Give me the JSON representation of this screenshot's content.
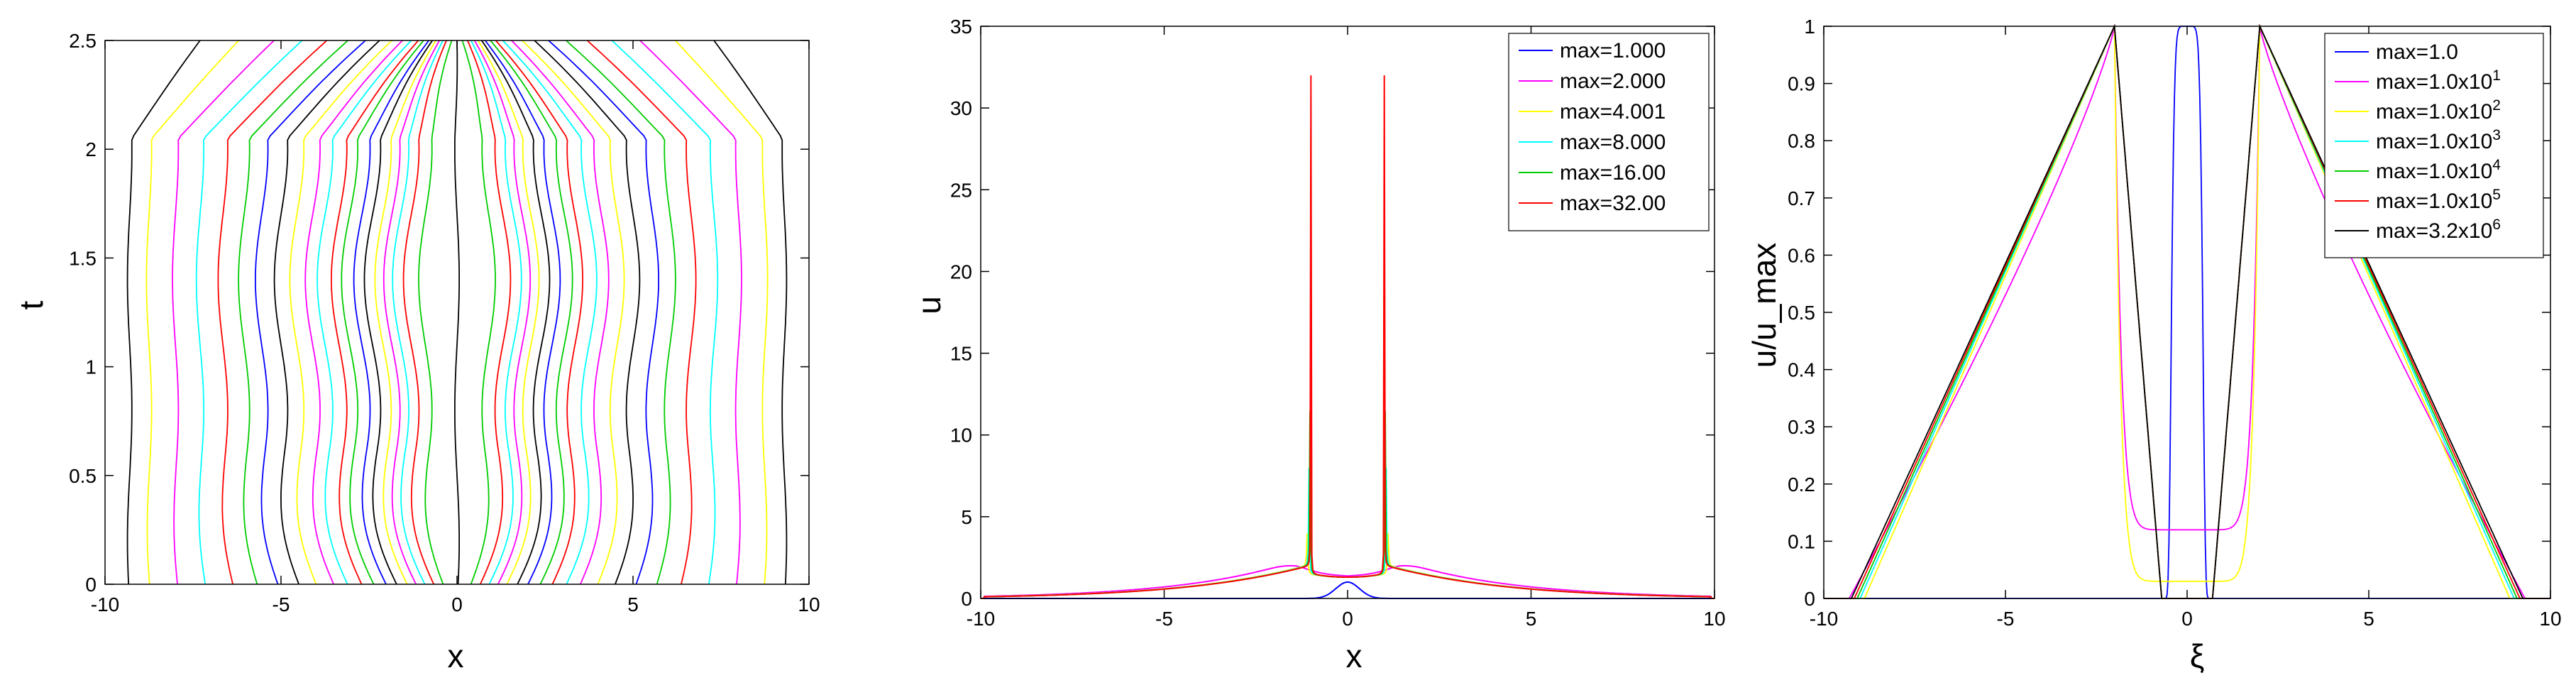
{
  "charts": [
    {
      "xlabel": "x",
      "ylabel": "t"
    },
    {
      "xlabel": "x",
      "ylabel": "u"
    },
    {
      "xlabel": "ξ",
      "ylabel": "u/u_max"
    }
  ],
  "colors": {
    "blue": "#0000ff",
    "magenta": "#ff00ff",
    "yellow": "#ffff00",
    "cyan": "#00ffff",
    "green": "#00cc00",
    "red": "#ff0000",
    "black": "#000000"
  },
  "chart_data": [
    {
      "type": "line",
      "title": "",
      "xlabel": "x",
      "ylabel": "t",
      "xlim": [
        -10,
        10
      ],
      "ylim": [
        0,
        2.5
      ],
      "xticks": [
        "-10",
        "-5",
        "0",
        "5",
        "10"
      ],
      "yticks": [
        "0",
        "0.5",
        "1",
        "1.5",
        "2",
        "2.5"
      ],
      "grid": false,
      "description_of_series": "mesh trajectories x_i(t), symmetric about x=0",
      "colors_cycle": [
        "blue",
        "green",
        "red",
        "cyan",
        "magenta",
        "yellow",
        "black"
      ],
      "trajectories": [
        {
          "x0": 0.0,
          "mid": 0.0,
          "end": 0.0
        },
        {
          "x0": 0.3,
          "mid": 0.9,
          "end": 0.15
        },
        {
          "x0": 0.55,
          "mid": 1.3,
          "end": 0.3
        },
        {
          "x0": 0.8,
          "mid": 1.6,
          "end": 0.4
        },
        {
          "x0": 1.05,
          "mid": 1.85,
          "end": 0.5
        },
        {
          "x0": 1.3,
          "mid": 2.1,
          "end": 0.6
        },
        {
          "x0": 1.6,
          "mid": 2.4,
          "end": 0.7
        },
        {
          "x0": 1.9,
          "mid": 2.7,
          "end": 0.8
        },
        {
          "x0": 2.25,
          "mid": 3.05,
          "end": 0.95
        },
        {
          "x0": 2.6,
          "mid": 3.35,
          "end": 1.1
        },
        {
          "x0": 3.0,
          "mid": 3.75,
          "end": 1.3
        },
        {
          "x0": 3.4,
          "mid": 4.1,
          "end": 1.55
        },
        {
          "x0": 3.9,
          "mid": 4.55,
          "end": 1.85
        },
        {
          "x0": 4.4,
          "mid": 5.0,
          "end": 2.2
        },
        {
          "x0": 5.0,
          "mid": 5.55,
          "end": 2.6
        },
        {
          "x0": 5.6,
          "mid": 6.05,
          "end": 3.1
        },
        {
          "x0": 6.3,
          "mid": 6.65,
          "end": 3.7
        },
        {
          "x0": 7.1,
          "mid": 7.3,
          "end": 4.4
        },
        {
          "x0": 7.9,
          "mid": 8.0,
          "end": 5.2
        },
        {
          "x0": 8.7,
          "mid": 8.75,
          "end": 6.2
        },
        {
          "x0": 9.3,
          "mid": 9.3,
          "end": 7.3
        }
      ]
    },
    {
      "type": "line",
      "title": "",
      "xlabel": "x",
      "ylabel": "u",
      "xlim": [
        -10,
        10
      ],
      "ylim": [
        0,
        35
      ],
      "xticks": [
        "-10",
        "-5",
        "0",
        "5",
        "10"
      ],
      "yticks": [
        "0",
        "5",
        "10",
        "15",
        "20",
        "25",
        "30",
        "35"
      ],
      "grid": false,
      "legend_position": "top-right",
      "series": [
        {
          "name": "max=1.000",
          "color": "blue",
          "peak": 1.0,
          "shape": "single",
          "center": 0.0,
          "width": 0.45
        },
        {
          "name": "max=2.000",
          "color": "magenta",
          "peak": 2.0,
          "shape": "double",
          "center": 1.5
        },
        {
          "name": "max=4.001",
          "color": "yellow",
          "peak": 4.0,
          "shape": "double",
          "center": 1.1
        },
        {
          "name": "max=8.000",
          "color": "cyan",
          "peak": 8.0,
          "shape": "double",
          "center": 1.05
        },
        {
          "name": "max=16.00",
          "color": "green",
          "peak": 16.0,
          "shape": "double",
          "center": 1.02
        },
        {
          "name": "max=32.00",
          "color": "red",
          "peak": 32.0,
          "shape": "double",
          "center": 1.0
        }
      ],
      "notes": "all double-peaked curves share the tail value about 1.3 at x=0 and decay to 0 at |x|=10"
    },
    {
      "type": "line",
      "title": "",
      "xlabel": "ξ",
      "ylabel": "u/u_max",
      "xlim": [
        -10,
        10
      ],
      "ylim": [
        0,
        1
      ],
      "xticks": [
        "-10",
        "-5",
        "0",
        "5",
        "10"
      ],
      "yticks": [
        "0",
        "0.1",
        "0.2",
        "0.3",
        "0.4",
        "0.5",
        "0.6",
        "0.7",
        "0.8",
        "0.9",
        "1"
      ],
      "grid": false,
      "legend_position": "top-right",
      "series": [
        {
          "name": "max=1.0",
          "sup": "",
          "color": "blue",
          "kind": "bump"
        },
        {
          "name": "max=1.0x10",
          "sup": "1",
          "color": "magenta",
          "kind": "double",
          "dip": 0.12
        },
        {
          "name": "max=1.0x10",
          "sup": "2",
          "color": "yellow",
          "kind": "double",
          "dip": 0.03
        },
        {
          "name": "max=1.0x10",
          "sup": "3",
          "color": "cyan",
          "kind": "double",
          "dip": 0.0
        },
        {
          "name": "max=1.0x10",
          "sup": "4",
          "color": "green",
          "kind": "double",
          "dip": 0.0
        },
        {
          "name": "max=1.0x10",
          "sup": "5",
          "color": "red",
          "kind": "double",
          "dip": 0.0
        },
        {
          "name": "max=3.2x10",
          "sup": "6",
          "color": "black",
          "kind": "double",
          "dip": 0.0
        }
      ],
      "peaks_at_xi": [
        -2,
        2
      ]
    }
  ]
}
